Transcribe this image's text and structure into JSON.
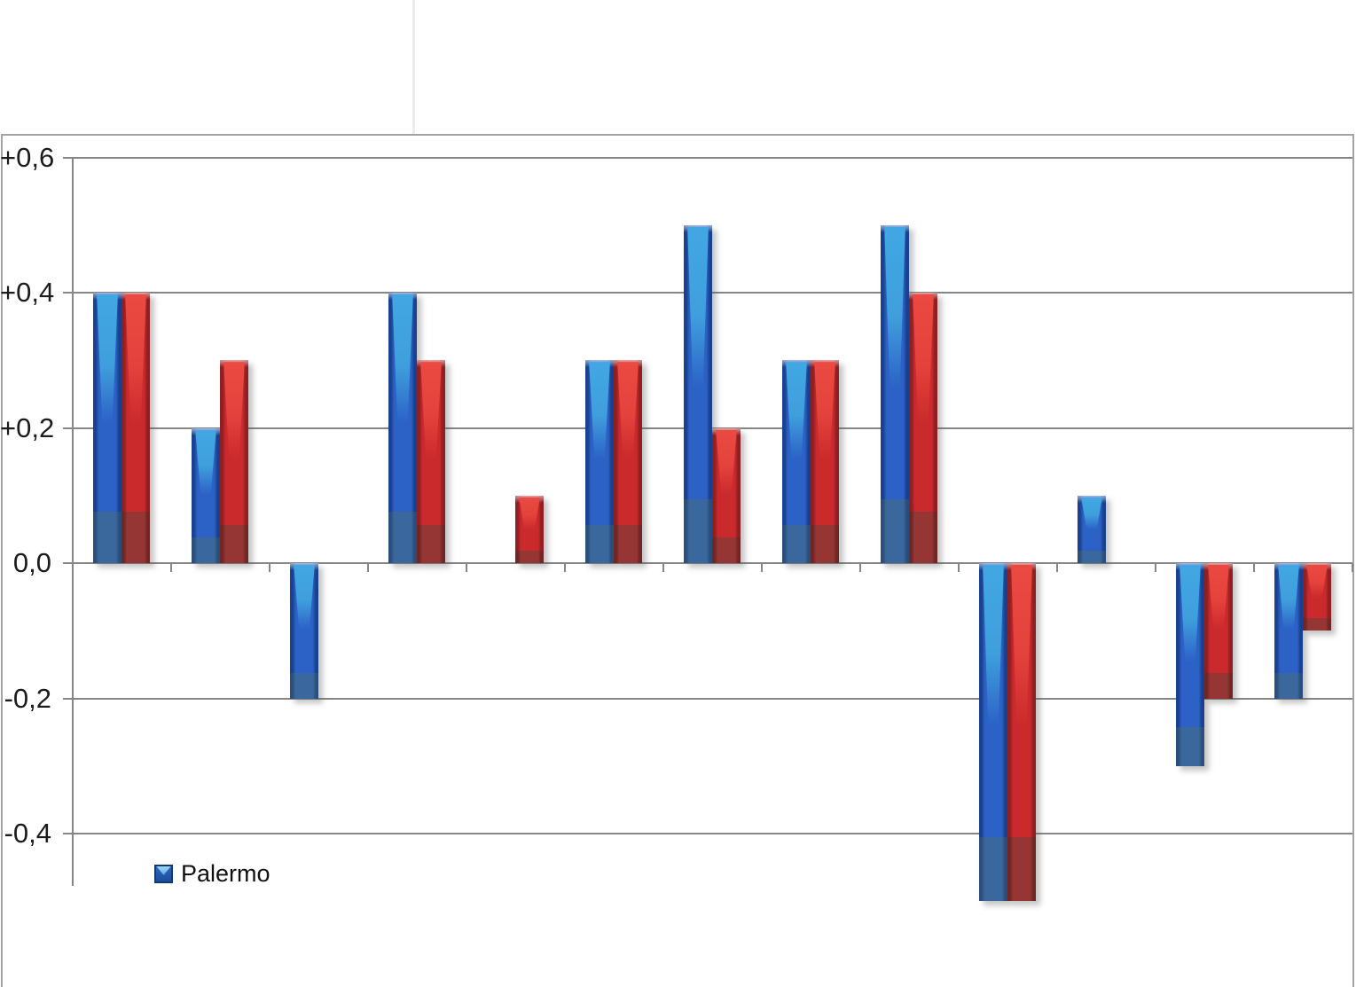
{
  "chart_data": {
    "type": "bar",
    "title": "",
    "categories": [
      "",
      "",
      "",
      "",
      "",
      "",
      "",
      "",
      "",
      "",
      "",
      "",
      ""
    ],
    "series": [
      {
        "name": "Palermo",
        "color": "#2c61c6",
        "values": [
          0.4,
          0.2,
          -0.2,
          0.4,
          0,
          0.3,
          0.5,
          0.3,
          0.5,
          -0.5,
          0.1,
          -0.3,
          -0.2
        ]
      },
      {
        "name": "",
        "color": "#cb2a2d",
        "values": [
          0.4,
          0.3,
          0,
          0.3,
          0.1,
          0.3,
          0.2,
          0.3,
          0.4,
          -0.5,
          0,
          -0.2,
          -0.1
        ]
      }
    ],
    "ylim": [
      -0.5,
      0.6
    ],
    "ytick_values": [
      0.6,
      0.4,
      0.2,
      0,
      -0.2,
      -0.4
    ],
    "ytick_labels": [
      "+0,6",
      "+0,4",
      "+0,2",
      "0,0",
      "-0,2",
      "-0,4"
    ],
    "xlabel": "",
    "ylabel": "",
    "grid": true,
    "legend_position": "bottom-left",
    "decimal_separator": ","
  },
  "legend": {
    "entries": [
      {
        "label": "Palermo",
        "color": "#2c61c6"
      }
    ]
  },
  "colors": {
    "series1_fill": "#2c61c6",
    "series1_highlight": "#41a7e2",
    "series1_shade": "#3a689c",
    "series2_fill": "#cb2a2d",
    "series2_highlight": "#ea4a42",
    "series2_shade": "#963634",
    "gridline": "#868686",
    "frame_border": "#a3a3a3",
    "axis_label_text": "#1c1c1c",
    "background": "#ffffff"
  }
}
